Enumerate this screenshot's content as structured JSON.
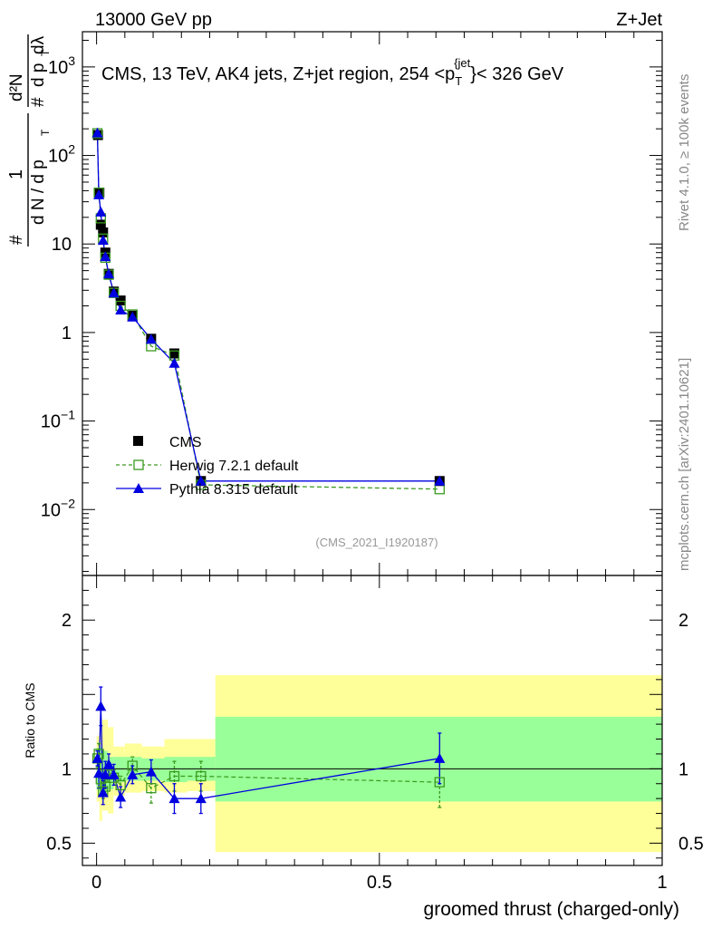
{
  "header": {
    "left": "13000 GeV pp",
    "right": "Z+Jet"
  },
  "side_labels": {
    "rivet": "Rivet 4.1.0, ≥ 100k events",
    "mcplots": "mcplots.cern.ch [arXiv:2401.10621]"
  },
  "colors": {
    "cms": "#000000",
    "herwig": "#3a9a1e",
    "pythia": "#0000e0",
    "band_outer": "#ffff99",
    "band_inner": "#99ff99"
  },
  "chart_data": [
    {
      "type": "line",
      "panel": "main",
      "title": "CMS, 13 TeV, AK4 jets, Z+jet region, 254 <p_T^{jet}< 326 GeV",
      "title_parts": {
        "prefix": "CMS, 13 TeV, AK4 jets, Z+jet region, 254 <p",
        "sub": "T",
        "sup": "{jet",
        "suffix": "}< 326 GeV"
      },
      "ylabel": "1/N dN/dp_T dλ",
      "ylabel_parts": {
        "hash": "#",
        "one": "1",
        "denominator": "d N / d p",
        "T": "T",
        "numer_sup": "d²N",
        "numer_hash": "#",
        "dp": "d p",
        "dlambda": "dλ"
      },
      "yscale": "log",
      "ylim": [
        0.0018,
        2500
      ],
      "xlim": [
        -0.025,
        1.0
      ],
      "y_ticks": [
        {
          "value": 0.01,
          "label": "10",
          "exp": "−2"
        },
        {
          "value": 0.1,
          "label": "10",
          "exp": "−1"
        },
        {
          "value": 1,
          "label": "1",
          "exp": ""
        },
        {
          "value": 10,
          "label": "10",
          "exp": ""
        },
        {
          "value": 100,
          "label": "10",
          "exp": "2"
        },
        {
          "value": 1000,
          "label": "10",
          "exp": "3"
        }
      ],
      "watermark": "(CMS_2021_I1920187)",
      "legend": {
        "position": "bottom-left",
        "entries": [
          "CMS",
          "Herwig 7.2.1 default",
          "Pythia 8.315 default"
        ]
      },
      "series": [
        {
          "name": "CMS",
          "x": [
            0.0025,
            0.005,
            0.0075,
            0.0115,
            0.0155,
            0.0215,
            0.0305,
            0.0425,
            0.0635,
            0.0965,
            0.1375,
            0.1845,
            0.6065
          ],
          "y": [
            170,
            38,
            16.5,
            13.5,
            8.0,
            4.6,
            2.9,
            2.3,
            1.55,
            0.85,
            0.58,
            0.021,
            0.021
          ]
        },
        {
          "name": "Herwig 7.2.1 default",
          "x": [
            0.0015,
            0.004,
            0.0075,
            0.0115,
            0.0155,
            0.0215,
            0.0305,
            0.0425,
            0.0635,
            0.0965,
            0.1375,
            0.1845,
            0.6065
          ],
          "y": [
            178,
            38,
            19.5,
            11.5,
            7.0,
            4.5,
            2.8,
            2.0,
            1.6,
            0.7,
            0.55,
            0.019,
            0.017
          ]
        },
        {
          "name": "Pythia 8.315 default",
          "x": [
            0.0015,
            0.004,
            0.0075,
            0.0115,
            0.0155,
            0.0215,
            0.0305,
            0.0425,
            0.0635,
            0.0965,
            0.1375,
            0.1845,
            0.6065
          ],
          "y": [
            180,
            36,
            23,
            11,
            7.2,
            4.6,
            2.8,
            1.8,
            1.5,
            0.84,
            0.45,
            0.021,
            0.021
          ]
        }
      ]
    },
    {
      "type": "line",
      "panel": "ratio",
      "ylabel": "Ratio to CMS",
      "xlabel": "groomed thrust (charged-only)",
      "ylim": [
        0.35,
        2.3
      ],
      "xlim": [
        -0.025,
        1.0
      ],
      "x_ticks": [
        {
          "value": 0,
          "label": "0"
        },
        {
          "value": 0.5,
          "label": "0.5"
        },
        {
          "value": 1,
          "label": "1"
        }
      ],
      "y_ticks": [
        {
          "value": 0.5,
          "label": "0.5"
        },
        {
          "value": 1,
          "label": "1"
        },
        {
          "value": 2,
          "label": "2"
        }
      ],
      "bands": {
        "edges": [
          0,
          0.005,
          0.01,
          0.02,
          0.03,
          0.05,
          0.08,
          0.12,
          0.16,
          0.21,
          1.0
        ],
        "outer_low": [
          0.78,
          0.65,
          0.72,
          0.7,
          0.82,
          0.84,
          0.85,
          0.84,
          0.85,
          0.44
        ],
        "outer_high": [
          1.22,
          1.28,
          1.33,
          1.28,
          1.15,
          1.17,
          1.15,
          1.2,
          1.2,
          1.63
        ],
        "inner_low": [
          0.86,
          0.82,
          0.84,
          0.86,
          0.91,
          0.92,
          0.92,
          0.91,
          0.92,
          0.78
        ],
        "inner_high": [
          1.14,
          1.15,
          1.12,
          1.08,
          1.08,
          1.08,
          1.07,
          1.08,
          1.08,
          1.35
        ]
      },
      "series": [
        {
          "name": "Herwig 7.2.1 default",
          "x": [
            0.0015,
            0.004,
            0.0075,
            0.0115,
            0.0155,
            0.0215,
            0.0305,
            0.0425,
            0.0635,
            0.0965,
            0.1375,
            0.1845,
            0.6065
          ],
          "y": [
            1.07,
            1.1,
            0.93,
            0.85,
            0.88,
            0.96,
            0.94,
            0.89,
            1.02,
            0.87,
            0.95,
            0.95,
            0.91
          ],
          "yerr": [
            0.06,
            0.07,
            0.06,
            0.05,
            0.05,
            0.05,
            0.05,
            0.06,
            0.06,
            0.1,
            0.1,
            0.1,
            0.17
          ]
        },
        {
          "name": "Pythia 8.315 default",
          "x": [
            0.0015,
            0.004,
            0.0075,
            0.0115,
            0.0155,
            0.0215,
            0.0305,
            0.0425,
            0.0635,
            0.0965,
            0.1375,
            0.1845,
            0.6065
          ],
          "y": [
            1.07,
            0.97,
            1.42,
            0.84,
            0.96,
            1.03,
            0.96,
            0.81,
            0.96,
            0.98,
            0.8,
            0.8,
            1.07
          ],
          "yerr": [
            0.05,
            0.1,
            0.13,
            0.08,
            0.09,
            0.07,
            0.07,
            0.07,
            0.06,
            0.08,
            0.1,
            0.1,
            0.17
          ]
        }
      ]
    }
  ]
}
